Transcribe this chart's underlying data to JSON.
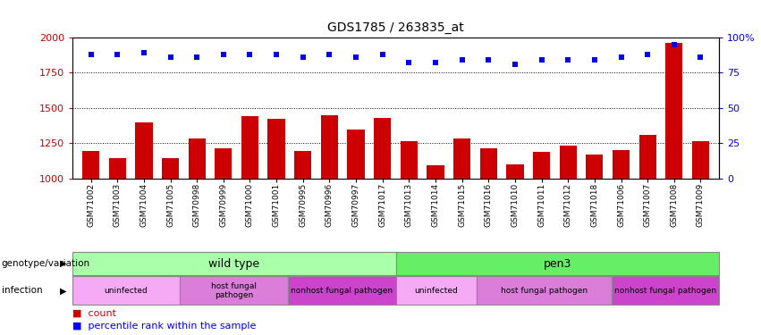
{
  "title": "GDS1785 / 263835_at",
  "samples": [
    "GSM71002",
    "GSM71003",
    "GSM71004",
    "GSM71005",
    "GSM70998",
    "GSM70999",
    "GSM71000",
    "GSM71001",
    "GSM70995",
    "GSM70996",
    "GSM70997",
    "GSM71017",
    "GSM71013",
    "GSM71014",
    "GSM71015",
    "GSM71016",
    "GSM71010",
    "GSM71011",
    "GSM71012",
    "GSM71018",
    "GSM71006",
    "GSM71007",
    "GSM71008",
    "GSM71009"
  ],
  "counts": [
    1195,
    1145,
    1400,
    1145,
    1280,
    1215,
    1440,
    1420,
    1195,
    1445,
    1345,
    1430,
    1265,
    1090,
    1285,
    1215,
    1100,
    1190,
    1230,
    1170,
    1200,
    1310,
    1960,
    1265
  ],
  "percentiles": [
    88,
    88,
    89,
    86,
    86,
    88,
    88,
    88,
    86,
    88,
    86,
    88,
    82,
    82,
    84,
    84,
    81,
    84,
    84,
    84,
    86,
    88,
    95,
    86
  ],
  "ylim_left": [
    1000,
    2000
  ],
  "ylim_right": [
    0,
    100
  ],
  "yticks_left": [
    1000,
    1250,
    1500,
    1750,
    2000
  ],
  "yticks_right": [
    0,
    25,
    50,
    75,
    100
  ],
  "bar_color": "#cc0000",
  "dot_color": "#0000ee",
  "genotype_groups": [
    {
      "label": "wild type",
      "start": 0,
      "end": 11,
      "color": "#aaffaa"
    },
    {
      "label": "pen3",
      "start": 12,
      "end": 23,
      "color": "#66ee66"
    }
  ],
  "infection_groups": [
    {
      "label": "uninfected",
      "start": 0,
      "end": 3,
      "color": "#f0a0f0"
    },
    {
      "label": "host fungal\npathogen",
      "start": 4,
      "end": 7,
      "color": "#d878d8"
    },
    {
      "label": "nonhost fungal pathogen",
      "start": 8,
      "end": 11,
      "color": "#cc55cc"
    },
    {
      "label": "uninfected",
      "start": 12,
      "end": 14,
      "color": "#f0a0f0"
    },
    {
      "label": "host fungal pathogen",
      "start": 15,
      "end": 19,
      "color": "#d878d8"
    },
    {
      "label": "nonhost fungal pathogen",
      "start": 20,
      "end": 23,
      "color": "#cc55cc"
    }
  ],
  "legend_count_color": "#cc0000",
  "legend_pct_color": "#0000ee"
}
